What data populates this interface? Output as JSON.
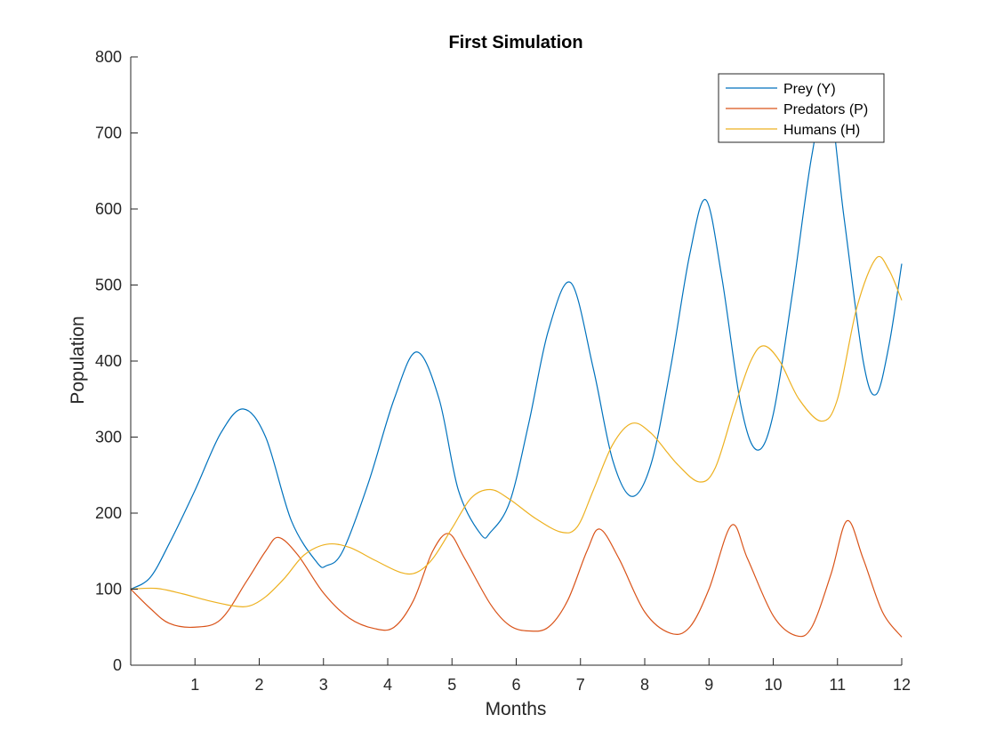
{
  "chart_data": {
    "type": "line",
    "title": "First Simulation",
    "xlabel": "Months",
    "ylabel": "Population",
    "xlim": [
      0,
      12
    ],
    "ylim": [
      0,
      800
    ],
    "xticks": [
      1,
      2,
      3,
      4,
      5,
      6,
      7,
      8,
      9,
      10,
      11,
      12
    ],
    "yticks": [
      0,
      100,
      200,
      300,
      400,
      500,
      600,
      700,
      800
    ],
    "grid": false,
    "legend_position": "top-right",
    "series": [
      {
        "name": "Prey (Y)",
        "color": "#0072BD",
        "points": [
          [
            0,
            100
          ],
          [
            0.3,
            115
          ],
          [
            0.6,
            160
          ],
          [
            1.0,
            230
          ],
          [
            1.4,
            305
          ],
          [
            1.75,
            337
          ],
          [
            2.1,
            300
          ],
          [
            2.5,
            190
          ],
          [
            2.9,
            135
          ],
          [
            3.05,
            131
          ],
          [
            3.3,
            150
          ],
          [
            3.7,
            240
          ],
          [
            4.1,
            350
          ],
          [
            4.45,
            412
          ],
          [
            4.8,
            350
          ],
          [
            5.1,
            230
          ],
          [
            5.45,
            172
          ],
          [
            5.6,
            175
          ],
          [
            5.9,
            215
          ],
          [
            6.2,
            320
          ],
          [
            6.5,
            440
          ],
          [
            6.85,
            503
          ],
          [
            7.2,
            390
          ],
          [
            7.5,
            270
          ],
          [
            7.8,
            222
          ],
          [
            8.1,
            265
          ],
          [
            8.4,
            390
          ],
          [
            8.7,
            540
          ],
          [
            8.95,
            612
          ],
          [
            9.2,
            510
          ],
          [
            9.5,
            340
          ],
          [
            9.75,
            283
          ],
          [
            10.0,
            330
          ],
          [
            10.3,
            490
          ],
          [
            10.6,
            670
          ],
          [
            10.85,
            750
          ],
          [
            11.1,
            590
          ],
          [
            11.4,
            400
          ],
          [
            11.6,
            356
          ],
          [
            11.8,
            420
          ],
          [
            12.0,
            528
          ]
        ]
      },
      {
        "name": "Predators (P)",
        "color": "#D95319",
        "points": [
          [
            0,
            100
          ],
          [
            0.3,
            75
          ],
          [
            0.6,
            55
          ],
          [
            1.0,
            50
          ],
          [
            1.4,
            60
          ],
          [
            1.8,
            110
          ],
          [
            2.1,
            150
          ],
          [
            2.3,
            168
          ],
          [
            2.6,
            145
          ],
          [
            3.0,
            95
          ],
          [
            3.4,
            62
          ],
          [
            3.8,
            48
          ],
          [
            4.1,
            50
          ],
          [
            4.4,
            85
          ],
          [
            4.7,
            150
          ],
          [
            4.95,
            173
          ],
          [
            5.2,
            140
          ],
          [
            5.6,
            80
          ],
          [
            5.9,
            52
          ],
          [
            6.2,
            45
          ],
          [
            6.5,
            50
          ],
          [
            6.8,
            85
          ],
          [
            7.1,
            150
          ],
          [
            7.3,
            179
          ],
          [
            7.6,
            140
          ],
          [
            8.0,
            70
          ],
          [
            8.4,
            42
          ],
          [
            8.7,
            50
          ],
          [
            9.0,
            100
          ],
          [
            9.35,
            184
          ],
          [
            9.6,
            140
          ],
          [
            10.0,
            65
          ],
          [
            10.35,
            39
          ],
          [
            10.6,
            50
          ],
          [
            10.9,
            120
          ],
          [
            11.15,
            190
          ],
          [
            11.4,
            140
          ],
          [
            11.7,
            70
          ],
          [
            12.0,
            37
          ]
        ]
      },
      {
        "name": "Humans (H)",
        "color": "#EDB120",
        "points": [
          [
            0,
            100
          ],
          [
            0.4,
            101
          ],
          [
            0.8,
            94
          ],
          [
            1.2,
            85
          ],
          [
            1.6,
            78
          ],
          [
            1.85,
            78
          ],
          [
            2.1,
            90
          ],
          [
            2.4,
            115
          ],
          [
            2.7,
            145
          ],
          [
            3.05,
            159
          ],
          [
            3.4,
            155
          ],
          [
            3.8,
            138
          ],
          [
            4.2,
            122
          ],
          [
            4.45,
            122
          ],
          [
            4.7,
            140
          ],
          [
            5.0,
            180
          ],
          [
            5.3,
            220
          ],
          [
            5.6,
            231
          ],
          [
            5.9,
            218
          ],
          [
            6.3,
            193
          ],
          [
            6.7,
            175
          ],
          [
            6.95,
            182
          ],
          [
            7.2,
            230
          ],
          [
            7.5,
            290
          ],
          [
            7.8,
            318
          ],
          [
            8.1,
            305
          ],
          [
            8.5,
            265
          ],
          [
            8.85,
            241
          ],
          [
            9.1,
            260
          ],
          [
            9.4,
            340
          ],
          [
            9.65,
            400
          ],
          [
            9.85,
            420
          ],
          [
            10.1,
            400
          ],
          [
            10.4,
            350
          ],
          [
            10.75,
            321
          ],
          [
            11.0,
            350
          ],
          [
            11.3,
            470
          ],
          [
            11.6,
            535
          ],
          [
            11.8,
            520
          ],
          [
            12.0,
            480
          ]
        ]
      }
    ]
  }
}
